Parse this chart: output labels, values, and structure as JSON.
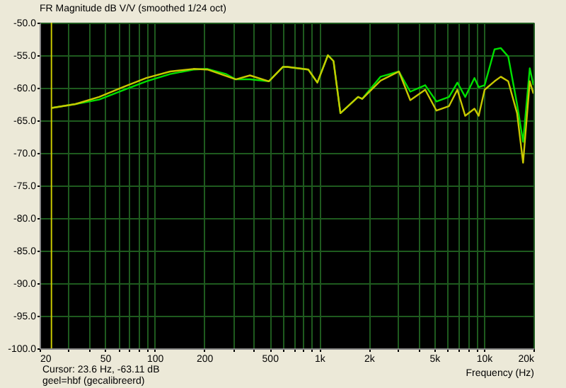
{
  "chart_data": {
    "type": "line",
    "title": "FR Magnitude dB V/V (smoothed 1/24 oct)",
    "xlabel": "Frequency (Hz)",
    "annotations": [
      "Cursor: 23.6 Hz, -63.11 dB",
      "geel=hbf (gecalibreerd)"
    ],
    "log": "x",
    "grid": true,
    "marker": "none",
    "line_style": "solid",
    "xlim": [
      20,
      20000
    ],
    "xticks": [
      20,
      {
        "value": 30,
        "label": null
      },
      {
        "value": 40,
        "label": null
      },
      50,
      {
        "value": 60,
        "label": null
      },
      {
        "value": 70,
        "label": null
      },
      {
        "value": 80,
        "label": null
      },
      {
        "value": 90,
        "label": null
      },
      100,
      200,
      {
        "value": 300,
        "label": null
      },
      {
        "value": 400,
        "label": null
      },
      500,
      {
        "value": 600,
        "label": null
      },
      {
        "value": 700,
        "label": null
      },
      {
        "value": 800,
        "label": null
      },
      {
        "value": 900,
        "label": null
      },
      {
        "value": 1000,
        "label": "1k"
      },
      {
        "value": 2000,
        "label": "2k"
      },
      {
        "value": 3000,
        "label": null
      },
      {
        "value": 4000,
        "label": null
      },
      {
        "value": 5000,
        "label": "5k"
      },
      {
        "value": 6000,
        "label": null
      },
      {
        "value": 7000,
        "label": null
      },
      {
        "value": 8000,
        "label": null
      },
      {
        "value": 9000,
        "label": null
      },
      {
        "value": 10000,
        "label": "10k"
      },
      {
        "value": 20000,
        "label": "20k"
      }
    ],
    "ylim": [
      -100,
      -50
    ],
    "yticks": [
      {
        "value": -100,
        "label": "-100.0"
      },
      {
        "value": -95,
        "label": "-95.0"
      },
      {
        "value": -90,
        "label": "-90.0"
      },
      {
        "value": -85,
        "label": "-85.0"
      },
      {
        "value": -80,
        "label": "-80.0"
      },
      {
        "value": -75,
        "label": "-75.0"
      },
      {
        "value": -70,
        "label": "-70.0"
      },
      {
        "value": -65,
        "label": "-65.0"
      },
      {
        "value": -60,
        "label": "-60.0"
      },
      {
        "value": -55,
        "label": "-55.0"
      },
      {
        "value": -50,
        "label": "-50.0"
      }
    ],
    "ref_lines": [
      {
        "axis": "x",
        "value": 23.6,
        "color": "#c8c800"
      }
    ],
    "x": [
      23.6,
      33,
      46,
      64,
      89,
      124,
      172,
      209,
      272,
      311,
      379,
      494,
      600,
      640,
      858,
      973,
      1128,
      1220,
      1344,
      1720,
      1823,
      2357,
      3045,
      3570,
      4400,
      5150,
      6140,
      6900,
      7700,
      8760,
      9300,
      10100,
      11600,
      12660,
      14050,
      15900,
      17300,
      19000,
      20000
    ],
    "series": [
      {
        "color": "#00e000",
        "values": [
          -63.1,
          -62.5,
          -61.8,
          -60.4,
          -59.0,
          -57.9,
          -57.2,
          -57.1,
          -57.9,
          -58.7,
          -58.7,
          -59.0,
          -56.8,
          -56.8,
          -57.2,
          -59.2,
          -55.0,
          -55.9,
          -63.9,
          -61.4,
          -61.7,
          -58.3,
          -57.5,
          -60.6,
          -59.6,
          -62.1,
          -61.4,
          -59.2,
          -61.4,
          -58.5,
          -59.9,
          -59.6,
          -54.1,
          -53.9,
          -55.2,
          -62.5,
          -68.3,
          -57.0,
          -59.6
        ]
      },
      {
        "color": "#c8c800",
        "values": [
          -63.1,
          -62.5,
          -61.4,
          -59.9,
          -58.5,
          -57.5,
          -57.1,
          -57.2,
          -58.2,
          -58.7,
          -58.1,
          -59.0,
          -56.8,
          -56.8,
          -57.2,
          -59.2,
          -55.0,
          -55.9,
          -63.9,
          -61.4,
          -61.7,
          -58.9,
          -57.5,
          -61.9,
          -60.3,
          -63.5,
          -62.8,
          -60.3,
          -64.3,
          -63.2,
          -64.3,
          -60.3,
          -59.0,
          -58.3,
          -59.0,
          -63.9,
          -71.5,
          -59.0,
          -60.9
        ]
      }
    ]
  }
}
